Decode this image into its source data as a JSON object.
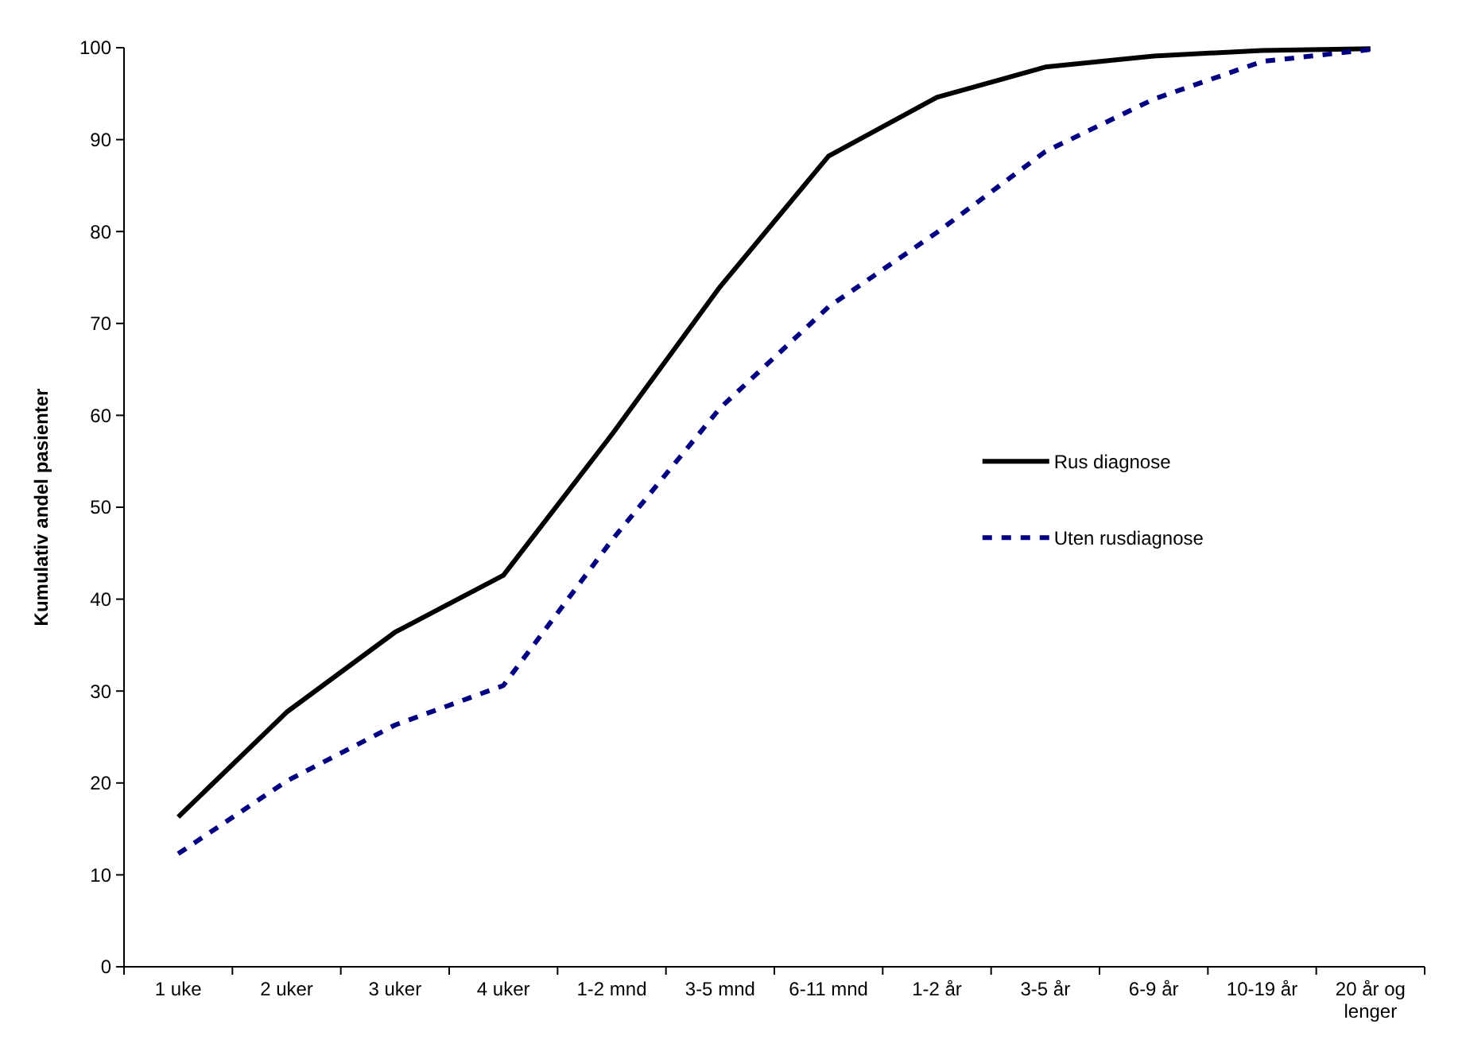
{
  "chart_data": {
    "type": "line",
    "ylabel": "Kumulativ andel pasienter",
    "categories": [
      "1 uke",
      "2 uker",
      "3 uker",
      "4 uker",
      "1-2 mnd",
      "3-5 mnd",
      "6-11 mnd",
      "1-2 år",
      "3-5 år",
      "6-9 år",
      "10-19 år",
      "20 år og lenger"
    ],
    "series": [
      {
        "name": "Rus diagnose",
        "color": "#000000",
        "line_style": "solid",
        "values": [
          16.3,
          27.7,
          36.4,
          42.6,
          57.9,
          74,
          88.2,
          94.6,
          97.9,
          99.1,
          99.7,
          99.9
        ]
      },
      {
        "name": "Uten rusdiagnose",
        "color": "#000080",
        "line_style": "dotted",
        "values": [
          12.3,
          20.2,
          26.3,
          30.6,
          46.4,
          60.8,
          71.8,
          79.9,
          88.7,
          94.4,
          98.5,
          99.8
        ]
      }
    ],
    "ylim": [
      0,
      100
    ],
    "yticks": [
      0,
      10,
      20,
      30,
      40,
      50,
      60,
      70,
      80,
      90,
      100
    ],
    "grid": false,
    "legend": "right",
    "marker": "none"
  }
}
